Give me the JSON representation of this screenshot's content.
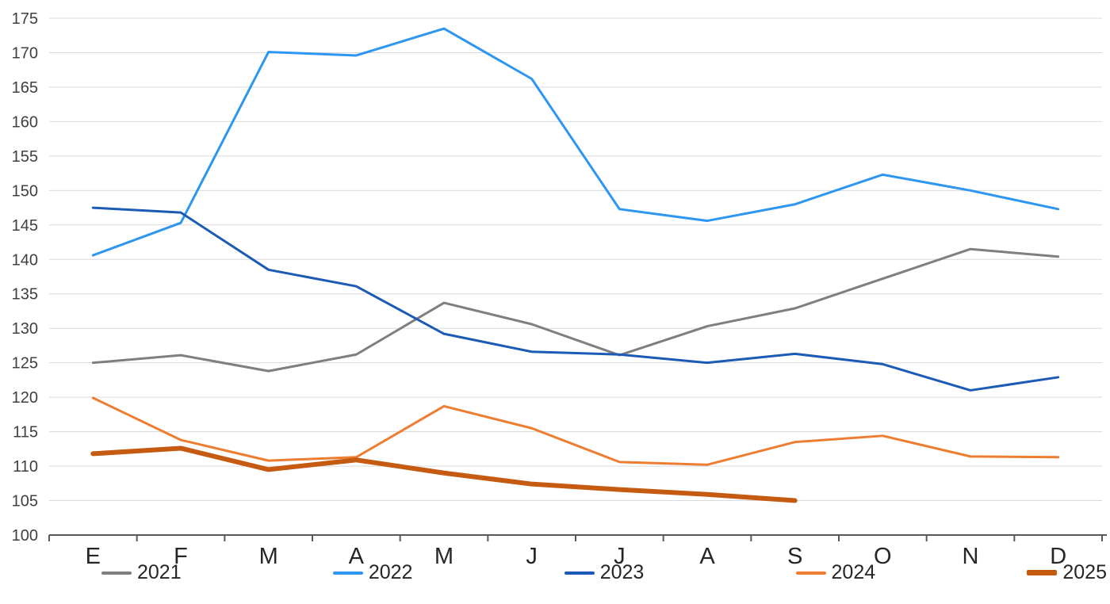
{
  "chart_data": {
    "type": "line",
    "title": "",
    "xlabel": "",
    "ylabel": "",
    "categories": [
      "E",
      "F",
      "M",
      "A",
      "M",
      "J",
      "J",
      "A",
      "S",
      "O",
      "N",
      "D"
    ],
    "series": [
      {
        "name": "2021",
        "color": "#7F7F7F",
        "stroke_width": 3,
        "values": [
          125.0,
          126.1,
          123.8,
          126.2,
          133.7,
          130.6,
          126.1,
          130.3,
          132.9,
          137.2,
          141.5,
          140.4
        ]
      },
      {
        "name": "2022",
        "color": "#2D96F0",
        "stroke_width": 3,
        "values": [
          140.6,
          145.3,
          170.1,
          169.6,
          173.5,
          166.2,
          147.3,
          145.6,
          148.0,
          152.3,
          150.0,
          147.3
        ]
      },
      {
        "name": "2023",
        "color": "#1C5BB5",
        "stroke_width": 3,
        "values": [
          147.5,
          146.8,
          138.5,
          136.1,
          129.2,
          126.6,
          126.2,
          125.0,
          126.3,
          124.8,
          121.0,
          122.9
        ]
      },
      {
        "name": "2024",
        "color": "#ED7D31",
        "stroke_width": 3,
        "values": [
          119.9,
          113.8,
          110.8,
          111.3,
          118.7,
          115.5,
          110.6,
          110.2,
          113.5,
          114.4,
          111.4,
          111.3
        ]
      },
      {
        "name": "2025",
        "color": "#C55A11",
        "stroke_width": 6,
        "values": [
          111.8,
          112.6,
          109.5,
          110.9,
          109.0,
          107.4,
          106.6,
          105.9,
          105.0
        ]
      }
    ],
    "ylim": [
      100,
      175
    ],
    "yticks": [
      100,
      105,
      110,
      115,
      120,
      125,
      130,
      135,
      140,
      145,
      150,
      155,
      160,
      165,
      170,
      175
    ],
    "grid": "horizontal",
    "gridline_color": "#D9D9D9",
    "axis_color": "#595959",
    "legend_position": "bottom"
  }
}
